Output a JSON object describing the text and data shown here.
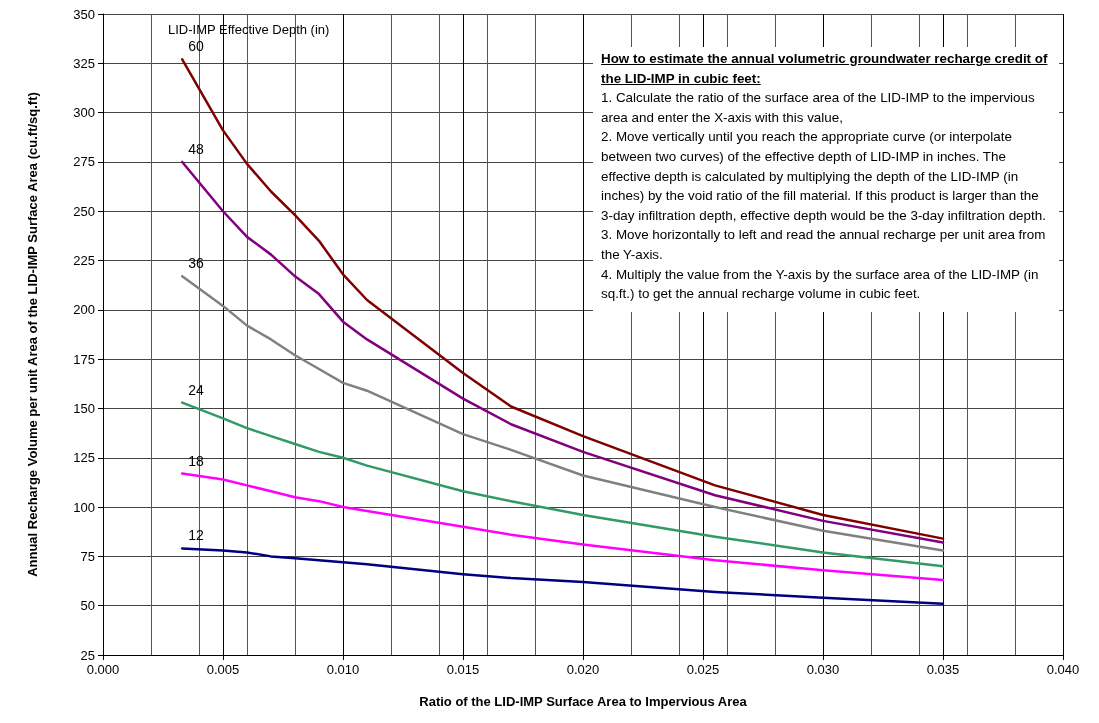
{
  "chart_data": {
    "type": "line",
    "xlabel": "Ratio of the LID-IMP Surface Area to Impervious Area",
    "ylabel": "Annual Recharge Volume per unit Area of the LID-IMP Surface Area (cu.ft/sq.ft)",
    "x": [
      0.0033,
      0.005,
      0.006,
      0.007,
      0.008,
      0.009,
      0.01,
      0.011,
      0.015,
      0.017,
      0.02,
      0.0255,
      0.03,
      0.035
    ],
    "series": [
      {
        "name": "60",
        "color": "#800000",
        "values": [
          327,
          291,
          274,
          260,
          248,
          235,
          218,
          205,
          168,
          151,
          136,
          111,
          96,
          84
        ]
      },
      {
        "name": "48",
        "color": "#800080",
        "values": [
          275,
          250,
          237,
          228,
          217,
          208,
          194,
          185,
          155,
          142,
          128,
          106,
          93,
          82
        ]
      },
      {
        "name": "36",
        "color": "#808080",
        "values": [
          217,
          202,
          192,
          185,
          177,
          170,
          163,
          159,
          137,
          129,
          116,
          100,
          88,
          78
        ]
      },
      {
        "name": "24",
        "color": "#339966",
        "values": [
          153,
          145,
          140,
          136,
          132,
          128,
          125,
          121,
          108,
          103,
          96,
          85,
          77,
          70
        ]
      },
      {
        "name": "18",
        "color": "#ff00ff",
        "values": [
          117,
          114,
          111,
          108,
          105,
          103,
          100,
          98,
          90,
          86,
          81,
          73,
          68,
          63
        ]
      },
      {
        "name": "12",
        "color": "#000080",
        "values": [
          79,
          78,
          77,
          75,
          74,
          73,
          72,
          71,
          66,
          64,
          62,
          57,
          54,
          51
        ]
      }
    ],
    "xlim": [
      0,
      0.04
    ],
    "xticks": [
      {
        "value": 0,
        "label": "0.000"
      },
      {
        "value": 0.005,
        "label": "0.005"
      },
      {
        "value": 0.01,
        "label": "0.010"
      },
      {
        "value": 0.015,
        "label": "0.015"
      },
      {
        "value": 0.02,
        "label": "0.020"
      },
      {
        "value": 0.025,
        "label": "0.025"
      },
      {
        "value": 0.03,
        "label": "0.030"
      },
      {
        "value": 0.035,
        "label": "0.035"
      },
      {
        "value": 0.04,
        "label": "0.040"
      }
    ],
    "ylim": [
      25,
      350
    ],
    "yticks": [
      25,
      50,
      75,
      100,
      125,
      150,
      175,
      200,
      225,
      250,
      275,
      300,
      325,
      350
    ],
    "grid": true,
    "legend": false,
    "marker": "none",
    "line_style": "solid",
    "annotations": [
      "LID-IMP Effective Depth (in)",
      "How to estimate the annual volumetric groundwater recharge credit of the LID-IMP in cubic feet:",
      "1. Calculate the ratio of the surface area of the LID-IMP to the impervious area and enter the X-axis with this value,",
      "2. Move vertically until you reach  the appropriate curve (or interpolate between two curves) of the effective depth of LID-IMP in inches. The effective depth is calculated by multiplying the depth of the LID-IMP (in inches) by the void ratio of the fill material. If this product is larger than the 3-day infiltration depth, effective depth would be the 3-day infiltration depth.",
      "3. Move horizontally to left and read the annual recharge per unit area from the Y-axis.",
      "4. Multiply the value from the Y-axis by the surface area of the LID-IMP (in sq.ft.) to get the annual recharge volume in cubic feet."
    ]
  }
}
